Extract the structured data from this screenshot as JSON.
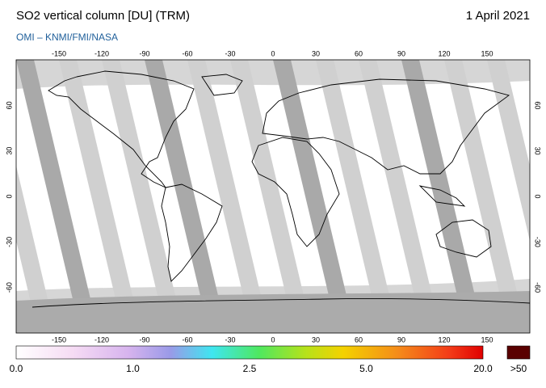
{
  "header": {
    "title": "SO2 vertical column [DU] (TRM)",
    "date": "1 April 2021",
    "credit": "OMI  –  KNMI/FMI/NASA"
  },
  "map": {
    "lon_ticks": [
      -150,
      -120,
      -90,
      -60,
      -30,
      0,
      30,
      60,
      90,
      120,
      150
    ],
    "lat_ticks": [
      60,
      30,
      0,
      -30,
      -60
    ]
  },
  "colorbar": {
    "labels": [
      "0.0",
      "1.0",
      "2.5",
      "5.0",
      "20.0"
    ],
    "overflow_label": ">50"
  }
}
